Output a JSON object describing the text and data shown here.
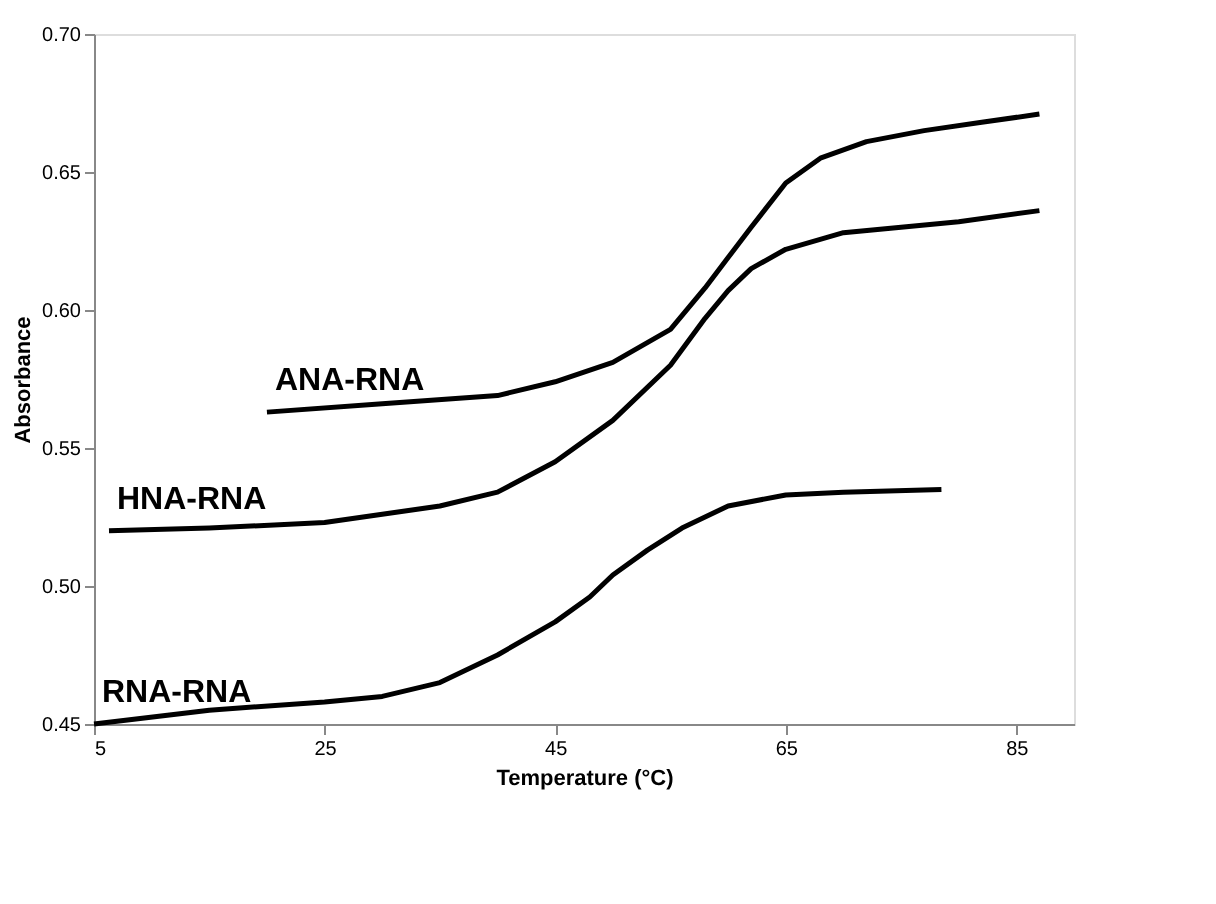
{
  "chart_data": {
    "type": "line",
    "xlabel": "Temperature (°C)",
    "ylabel": "Absorbance",
    "xlim": [
      5,
      90
    ],
    "xticks": [
      5,
      25,
      45,
      65,
      85
    ],
    "ylim": [
      0.45,
      0.7
    ],
    "yticks": [
      0.45,
      {
        "value": 0.5,
        "label": "0.50"
      },
      0.55,
      {
        "value": 0.6,
        "label": "0.60"
      },
      0.65,
      {
        "value": 0.7,
        "label": "0.70"
      }
    ],
    "grid": false,
    "legend": false,
    "marker": "none",
    "line_style": "solid",
    "series": [
      {
        "name": "ANA-RNA",
        "color": "#000000",
        "x": [
          20,
          30,
          40,
          45,
          50,
          55,
          58,
          60,
          62,
          65,
          68,
          72,
          77,
          82,
          87
        ],
        "values": [
          0.563,
          0.566,
          0.569,
          0.574,
          0.581,
          0.593,
          0.608,
          0.619,
          0.63,
          0.646,
          0.655,
          0.661,
          0.665,
          0.668,
          0.671
        ]
      },
      {
        "name": "HNA-RNA",
        "color": "#000000",
        "x": [
          6.3,
          15,
          25,
          35,
          40,
          45,
          50,
          55,
          58,
          60,
          62,
          65,
          70,
          75,
          80,
          87
        ],
        "values": [
          0.52,
          0.521,
          0.523,
          0.529,
          0.534,
          0.545,
          0.56,
          0.58,
          0.597,
          0.607,
          0.615,
          0.622,
          0.628,
          0.63,
          0.632,
          0.636
        ]
      },
      {
        "name": "RNA-RNA",
        "color": "#000000",
        "x": [
          5,
          15,
          25,
          30,
          35,
          40,
          45,
          48,
          50,
          53,
          56,
          60,
          65,
          70,
          78.5
        ],
        "values": [
          0.45,
          0.455,
          0.458,
          0.46,
          0.465,
          0.475,
          0.487,
          0.496,
          0.504,
          0.513,
          0.521,
          0.529,
          0.533,
          0.534,
          0.535
        ]
      }
    ]
  }
}
